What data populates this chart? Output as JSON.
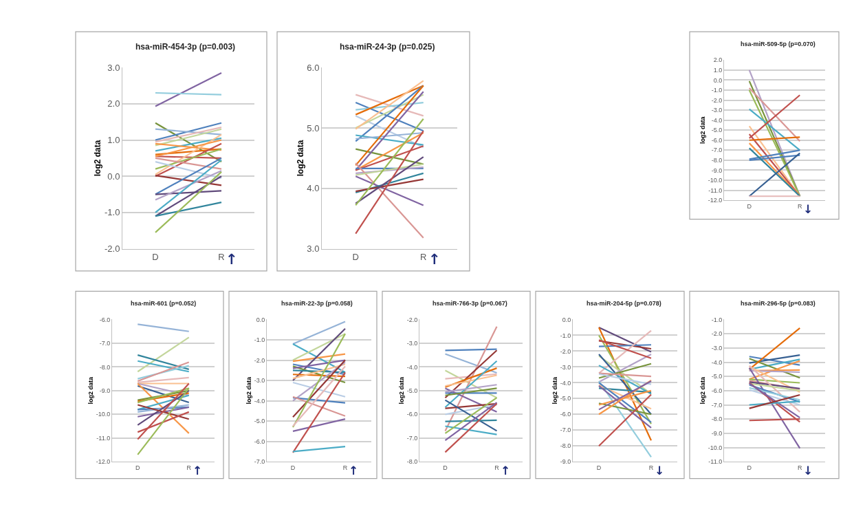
{
  "chart_data": [
    {
      "type": "line",
      "title": "hsa-miR-454-3p (p=0.003)",
      "ylabel": "log2 data",
      "categories": [
        "D",
        "R"
      ],
      "ylim": [
        -2,
        3
      ],
      "yticks": [
        {
          "value": -2,
          "label": "-2.0"
        },
        {
          "value": -1,
          "label": "-1.0"
        },
        {
          "value": 0,
          "label": "0.0"
        },
        {
          "value": 1,
          "label": "1.0"
        },
        {
          "value": 2,
          "label": "2.0"
        },
        {
          "value": 3,
          "label": "3.0"
        }
      ],
      "grid": "y",
      "marker": "none",
      "line_style": "solid",
      "annotations": [
        "↑"
      ],
      "series": [
        {
          "color": "#8064a2",
          "values": [
            1.93,
            2.85
          ]
        },
        {
          "color": "#93cddd",
          "values": [
            2.3,
            2.25
          ]
        },
        {
          "color": "#77933c",
          "values": [
            1.47,
            0.4
          ]
        },
        {
          "color": "#4f81bd",
          "values": [
            1.0,
            1.47
          ]
        },
        {
          "color": "#95b3d7",
          "values": [
            1.3,
            1.15
          ]
        },
        {
          "color": "#e6b9b8",
          "values": [
            0.95,
            1.35
          ]
        },
        {
          "color": "#c3d69b",
          "values": [
            0.85,
            1.3
          ]
        },
        {
          "color": "#4bacc6",
          "values": [
            0.7,
            1.05
          ]
        },
        {
          "color": "#f79646",
          "values": [
            0.9,
            0.72
          ]
        },
        {
          "color": "#e46c0a",
          "values": [
            0.6,
            0.75
          ]
        },
        {
          "color": "#c0504d",
          "values": [
            0.55,
            0.5
          ]
        },
        {
          "color": "#fac090",
          "values": [
            0.05,
            1.15
          ]
        },
        {
          "color": "#f79646",
          "values": [
            0.55,
            1.0
          ]
        },
        {
          "color": "#c0504d",
          "values": [
            0.0,
            0.9
          ]
        },
        {
          "color": "#9bbb59",
          "values": [
            0.2,
            0.75
          ]
        },
        {
          "color": "#d99694",
          "values": [
            0.5,
            0.2
          ]
        },
        {
          "color": "#b9cde5",
          "values": [
            0.4,
            -0.05
          ]
        },
        {
          "color": "#953735",
          "values": [
            0.02,
            -0.25
          ]
        },
        {
          "color": "#4f81bd",
          "values": [
            -0.5,
            0.5
          ]
        },
        {
          "color": "#604a7b",
          "values": [
            -0.5,
            -0.4
          ]
        },
        {
          "color": "#b3a2c7",
          "values": [
            -0.65,
            0.15
          ]
        },
        {
          "color": "#4bacc6",
          "values": [
            -1.0,
            0.45
          ]
        },
        {
          "color": "#604a7b",
          "values": [
            -1.1,
            0.0
          ]
        },
        {
          "color": "#31859c",
          "values": [
            -1.1,
            -0.72
          ]
        },
        {
          "color": "#9bbb59",
          "values": [
            -1.55,
            0.12
          ]
        }
      ]
    },
    {
      "type": "line",
      "title": "hsa-miR-24-3p (p=0.025)",
      "ylabel": "log2 data",
      "categories": [
        "D",
        "R"
      ],
      "ylim": [
        3,
        6
      ],
      "yticks": [
        {
          "value": 3,
          "label": "3.0"
        },
        {
          "value": 4,
          "label": "4.0"
        },
        {
          "value": 5,
          "label": "5.0"
        },
        {
          "value": 6,
          "label": "6.0"
        }
      ],
      "grid": "y",
      "marker": "none",
      "line_style": "solid",
      "annotations": [
        "↑"
      ],
      "series": [
        {
          "color": "#e6b9b8",
          "values": [
            5.55,
            5.2
          ]
        },
        {
          "color": "#4f81bd",
          "values": [
            5.42,
            4.95
          ]
        },
        {
          "color": "#93cddd",
          "values": [
            5.3,
            5.42
          ]
        },
        {
          "color": "#e46c0a",
          "values": [
            5.22,
            5.7
          ]
        },
        {
          "color": "#b9cde5",
          "values": [
            5.2,
            4.68
          ]
        },
        {
          "color": "#c3d69b",
          "values": [
            5.0,
            5.55
          ]
        },
        {
          "color": "#fac090",
          "values": [
            4.98,
            5.78
          ]
        },
        {
          "color": "#4f81bd",
          "values": [
            4.78,
            5.7
          ]
        },
        {
          "color": "#4bacc6",
          "values": [
            4.88,
            4.72
          ]
        },
        {
          "color": "#95b3d7",
          "values": [
            4.82,
            4.92
          ]
        },
        {
          "color": "#77933c",
          "values": [
            4.65,
            4.4
          ]
        },
        {
          "color": "#f79646",
          "values": [
            4.3,
            4.92
          ]
        },
        {
          "color": "#e46c0a",
          "values": [
            4.38,
            5.7
          ]
        },
        {
          "color": "#8064a2",
          "values": [
            4.3,
            5.6
          ]
        },
        {
          "color": "#c0504d",
          "values": [
            4.3,
            4.7
          ]
        },
        {
          "color": "#4f81bd",
          "values": [
            4.33,
            4.33
          ]
        },
        {
          "color": "#b3a2c7",
          "values": [
            4.25,
            4.35
          ]
        },
        {
          "color": "#d99694",
          "values": [
            4.42,
            3.18
          ]
        },
        {
          "color": "#c3d69b",
          "values": [
            4.22,
            4.4
          ]
        },
        {
          "color": "#8064a2",
          "values": [
            4.2,
            3.72
          ]
        },
        {
          "color": "#31859c",
          "values": [
            3.93,
            4.25
          ]
        },
        {
          "color": "#953735",
          "values": [
            3.95,
            4.15
          ]
        },
        {
          "color": "#604a7b",
          "values": [
            3.75,
            4.52
          ]
        },
        {
          "color": "#9bbb59",
          "values": [
            3.72,
            5.15
          ]
        },
        {
          "color": "#c0504d",
          "values": [
            3.25,
            4.95
          ]
        }
      ]
    },
    {
      "type": "line",
      "title": "hsa-miR-509-5p (p=0.070)",
      "ylabel": "log2 data",
      "categories": [
        "D",
        "R"
      ],
      "ylim": [
        -12,
        2
      ],
      "yticks": [
        {
          "value": -12,
          "label": "-12.0"
        },
        {
          "value": -11,
          "label": "-11.0"
        },
        {
          "value": -10,
          "label": "-10.0"
        },
        {
          "value": -9,
          "label": "-9.0"
        },
        {
          "value": -8,
          "label": "-8.0"
        },
        {
          "value": -7,
          "label": "-7.0"
        },
        {
          "value": -6,
          "label": "-6.0"
        },
        {
          "value": -5,
          "label": "-5.0"
        },
        {
          "value": -4,
          "label": "-4.0"
        },
        {
          "value": -3,
          "label": "-3.0"
        },
        {
          "value": -2,
          "label": "-2.0"
        },
        {
          "value": -1,
          "label": "-1.0"
        },
        {
          "value": 0,
          "label": "0.0"
        },
        {
          "value": 1,
          "label": "1.0"
        },
        {
          "value": 2,
          "label": "2.0"
        }
      ],
      "grid": "y",
      "marker": "none",
      "line_style": "solid",
      "annotations": [
        "↓"
      ],
      "series": [
        {
          "color": "#b3a2c7",
          "values": [
            1.0,
            -11.6
          ]
        },
        {
          "color": "#77933c",
          "values": [
            -0.1,
            -11.6
          ]
        },
        {
          "color": "#9bbb59",
          "values": [
            -1.0,
            -11.6
          ]
        },
        {
          "color": "#d99694",
          "values": [
            -0.8,
            -6.1
          ]
        },
        {
          "color": "#4bacc6",
          "values": [
            -2.9,
            -7.0
          ]
        },
        {
          "color": "#fac090",
          "values": [
            -4.6,
            -11.6
          ]
        },
        {
          "color": "#c0504d",
          "values": [
            -5.4,
            -11.6
          ]
        },
        {
          "color": "#c0504d",
          "values": [
            -5.8,
            -1.5
          ]
        },
        {
          "color": "#e46c0a",
          "values": [
            -6.0,
            -5.7
          ]
        },
        {
          "color": "#f79646",
          "values": [
            -6.3,
            -11.6
          ]
        },
        {
          "color": "#4f81bd",
          "values": [
            -7.9,
            -7.0
          ]
        },
        {
          "color": "#4f81bd",
          "values": [
            -8.0,
            -7.5
          ]
        },
        {
          "color": "#31859c",
          "values": [
            -6.8,
            -11.6
          ]
        },
        {
          "color": "#376092",
          "values": [
            -11.6,
            -7.3
          ]
        },
        {
          "color": "#e6b9b8",
          "values": [
            -11.6,
            -11.6
          ]
        }
      ]
    },
    {
      "type": "line",
      "title": "hsa-miR-601 (p=0.052)",
      "ylabel": "log2 data",
      "categories": [
        "D",
        "R"
      ],
      "ylim": [
        -12,
        -6
      ],
      "yticks": [
        {
          "value": -12,
          "label": "-12.0"
        },
        {
          "value": -11,
          "label": "-11.0"
        },
        {
          "value": -10,
          "label": "-10.0"
        },
        {
          "value": -9,
          "label": "-9.0"
        },
        {
          "value": -8,
          "label": "-8.0"
        },
        {
          "value": -7,
          "label": "-7.0"
        },
        {
          "value": -6,
          "label": "-6.0"
        }
      ],
      "grid": "y",
      "marker": "none",
      "line_style": "solid",
      "annotations": [
        "↑"
      ],
      "series": [
        {
          "color": "#95b3d7",
          "values": [
            -6.2,
            -6.5
          ]
        },
        {
          "color": "#c3d69b",
          "values": [
            -8.2,
            -6.75
          ]
        },
        {
          "color": "#31859c",
          "values": [
            -7.5,
            -8.1
          ]
        },
        {
          "color": "#4bacc6",
          "values": [
            -7.75,
            -8.2
          ]
        },
        {
          "color": "#93cddd",
          "values": [
            -8.5,
            -7.95
          ]
        },
        {
          "color": "#d99694",
          "values": [
            -8.6,
            -7.8
          ]
        },
        {
          "color": "#e6b9b8",
          "values": [
            -8.65,
            -8.45
          ]
        },
        {
          "color": "#fac090",
          "values": [
            -8.7,
            -8.7
          ]
        },
        {
          "color": "#b3a2c7",
          "values": [
            -8.7,
            -9.2
          ]
        },
        {
          "color": "#376092",
          "values": [
            -8.8,
            -9.5
          ]
        },
        {
          "color": "#f79646",
          "values": [
            -8.7,
            -10.8
          ]
        },
        {
          "color": "#77933c",
          "values": [
            -9.4,
            -9.0
          ]
        },
        {
          "color": "#e46c0a",
          "values": [
            -9.45,
            -9.1
          ]
        },
        {
          "color": "#9bbb59",
          "values": [
            -9.5,
            -8.9
          ]
        },
        {
          "color": "#4bacc6",
          "values": [
            -9.8,
            -9.2
          ]
        },
        {
          "color": "#4f81bd",
          "values": [
            -9.8,
            -9.7
          ]
        },
        {
          "color": "#95b3d7",
          "values": [
            -9.9,
            -9.6
          ]
        },
        {
          "color": "#8064a2",
          "values": [
            -10.1,
            -9.7
          ]
        },
        {
          "color": "#604a7b",
          "values": [
            -10.45,
            -9.0
          ]
        },
        {
          "color": "#953735",
          "values": [
            -9.6,
            -10.2
          ]
        },
        {
          "color": "#c0504d",
          "values": [
            -10.75,
            -9.9
          ]
        },
        {
          "color": "#c0504d",
          "values": [
            -11.05,
            -8.7
          ]
        },
        {
          "color": "#9bbb59",
          "values": [
            -11.7,
            -8.9
          ]
        }
      ]
    },
    {
      "type": "line",
      "title": "hsa-miR-22-3p (p=0.058)",
      "ylabel": "log2 data",
      "categories": [
        "D",
        "R"
      ],
      "ylim": [
        -7,
        0
      ],
      "yticks": [
        {
          "value": -7,
          "label": "-7.0"
        },
        {
          "value": -6,
          "label": "-6.0"
        },
        {
          "value": -5,
          "label": "-5.0"
        },
        {
          "value": -4,
          "label": "-4.0"
        },
        {
          "value": -3,
          "label": "-3.0"
        },
        {
          "value": -2,
          "label": "-2.0"
        },
        {
          "value": -1,
          "label": "-1.0"
        },
        {
          "value": 0,
          "label": "0.0"
        }
      ],
      "grid": "y",
      "marker": "none",
      "line_style": "solid",
      "annotations": [
        "↑"
      ],
      "series": [
        {
          "color": "#95b3d7",
          "values": [
            -1.2,
            -0.1
          ]
        },
        {
          "color": "#4bacc6",
          "values": [
            -1.2,
            -2.6
          ]
        },
        {
          "color": "#c3d69b",
          "values": [
            -2.0,
            -0.7
          ]
        },
        {
          "color": "#f79646",
          "values": [
            -2.05,
            -1.7
          ]
        },
        {
          "color": "#4f81bd",
          "values": [
            -2.2,
            -2.7
          ]
        },
        {
          "color": "#604a7b",
          "values": [
            -3.0,
            -0.45
          ]
        },
        {
          "color": "#77933c",
          "values": [
            -2.3,
            -3.1
          ]
        },
        {
          "color": "#31859c",
          "values": [
            -2.5,
            -2.6
          ]
        },
        {
          "color": "#e46c0a",
          "values": [
            -2.7,
            -2.8
          ]
        },
        {
          "color": "#fac090",
          "values": [
            -2.9,
            -2.2
          ]
        },
        {
          "color": "#b9cde5",
          "values": [
            -3.1,
            -3.8
          ]
        },
        {
          "color": "#8064a2",
          "values": [
            -2.4,
            -2.0
          ]
        },
        {
          "color": "#b3a2c7",
          "values": [
            -4.0,
            -2.1
          ]
        },
        {
          "color": "#4f81bd",
          "values": [
            -3.85,
            -4.1
          ]
        },
        {
          "color": "#d99694",
          "values": [
            -3.8,
            -4.75
          ]
        },
        {
          "color": "#953735",
          "values": [
            -4.8,
            -2.0
          ]
        },
        {
          "color": "#9bbb59",
          "values": [
            -5.3,
            -0.7
          ]
        },
        {
          "color": "#e6b9b8",
          "values": [
            -5.25,
            -2.3
          ]
        },
        {
          "color": "#8064a2",
          "values": [
            -5.5,
            -4.9
          ]
        },
        {
          "color": "#c0504d",
          "values": [
            -6.55,
            -2.6
          ]
        },
        {
          "color": "#4bacc6",
          "values": [
            -6.5,
            -6.25
          ]
        }
      ]
    },
    {
      "type": "line",
      "title": "hsa-miR-766-3p (p=0.067)",
      "ylabel": "log2 data",
      "categories": [
        "D",
        "R"
      ],
      "ylim": [
        -8,
        -2
      ],
      "yticks": [
        {
          "value": -8,
          "label": "-8.0"
        },
        {
          "value": -7,
          "label": "-7.0"
        },
        {
          "value": -6,
          "label": "-6.0"
        },
        {
          "value": -5,
          "label": "-5.0"
        },
        {
          "value": -4,
          "label": "-4.0"
        },
        {
          "value": -3,
          "label": "-3.0"
        },
        {
          "value": -2,
          "label": "-2.0"
        }
      ],
      "grid": "y",
      "marker": "none",
      "line_style": "solid",
      "annotations": [
        "↑"
      ],
      "series": [
        {
          "color": "#4f81bd",
          "values": [
            -3.3,
            -3.25
          ]
        },
        {
          "color": "#95b3d7",
          "values": [
            -3.45,
            -4.25
          ]
        },
        {
          "color": "#c3d69b",
          "values": [
            -4.15,
            -5.3
          ]
        },
        {
          "color": "#e6b9b8",
          "values": [
            -4.5,
            -4.3
          ]
        },
        {
          "color": "#d99694",
          "values": [
            -6.7,
            -2.3
          ]
        },
        {
          "color": "#953735",
          "values": [
            -5.3,
            -3.3
          ]
        },
        {
          "color": "#e46c0a",
          "values": [
            -4.85,
            -4.05
          ]
        },
        {
          "color": "#fac090",
          "values": [
            -4.8,
            -4.35
          ]
        },
        {
          "color": "#4bacc6",
          "values": [
            -5.7,
            -3.75
          ]
        },
        {
          "color": "#4f81bd",
          "values": [
            -5.1,
            -5.1
          ]
        },
        {
          "color": "#8064a2",
          "values": [
            -4.9,
            -5.9
          ]
        },
        {
          "color": "#b3a2c7",
          "values": [
            -5.05,
            -4.75
          ]
        },
        {
          "color": "#77933c",
          "values": [
            -5.2,
            -4.9
          ]
        },
        {
          "color": "#953735",
          "values": [
            -5.75,
            -5.55
          ]
        },
        {
          "color": "#b9cde5",
          "values": [
            -6.0,
            -5.6
          ]
        },
        {
          "color": "#376092",
          "values": [
            -5.4,
            -6.7
          ]
        },
        {
          "color": "#31859c",
          "values": [
            -6.3,
            -6.25
          ]
        },
        {
          "color": "#4bacc6",
          "values": [
            -6.5,
            -6.85
          ]
        },
        {
          "color": "#9bbb59",
          "values": [
            -6.8,
            -5.3
          ]
        },
        {
          "color": "#8064a2",
          "values": [
            -7.1,
            -5.5
          ]
        },
        {
          "color": "#c0504d",
          "values": [
            -7.6,
            -5.55
          ]
        }
      ]
    },
    {
      "type": "line",
      "title": "hsa-miR-204-5p (p=0.078)",
      "ylabel": "log2 data",
      "categories": [
        "D",
        "R"
      ],
      "ylim": [
        -9,
        0
      ],
      "yticks": [
        {
          "value": -9,
          "label": "-9.0"
        },
        {
          "value": -8,
          "label": "-8.0"
        },
        {
          "value": -7,
          "label": "-7.0"
        },
        {
          "value": -6,
          "label": "-6.0"
        },
        {
          "value": -5,
          "label": "-5.0"
        },
        {
          "value": -4,
          "label": "-4.0"
        },
        {
          "value": -3,
          "label": "-3.0"
        },
        {
          "value": -2,
          "label": "-2.0"
        },
        {
          "value": -1,
          "label": "-1.0"
        },
        {
          "value": 0,
          "label": "0.0"
        }
      ],
      "grid": "y",
      "marker": "none",
      "line_style": "solid",
      "annotations": [
        "↓"
      ],
      "series": [
        {
          "color": "#604a7b",
          "values": [
            -0.5,
            -2.05
          ]
        },
        {
          "color": "#e46c0a",
          "values": [
            -0.5,
            -7.65
          ]
        },
        {
          "color": "#953735",
          "values": [
            -1.35,
            -1.85
          ]
        },
        {
          "color": "#4f81bd",
          "values": [
            -1.7,
            -1.6
          ]
        },
        {
          "color": "#9bbb59",
          "values": [
            -1.0,
            -6.6
          ]
        },
        {
          "color": "#e6b9b8",
          "values": [
            -3.4,
            -0.7
          ]
        },
        {
          "color": "#c3d69b",
          "values": [
            -2.3,
            -4.7
          ]
        },
        {
          "color": "#376092",
          "values": [
            -2.2,
            -6.0
          ]
        },
        {
          "color": "#b3a2c7",
          "values": [
            -3.95,
            -2.2
          ]
        },
        {
          "color": "#77933c",
          "values": [
            -3.7,
            -2.8
          ]
        },
        {
          "color": "#4bacc6",
          "values": [
            -2.9,
            -4.7
          ]
        },
        {
          "color": "#d99694",
          "values": [
            -3.4,
            -3.6
          ]
        },
        {
          "color": "#b9cde5",
          "values": [
            -3.45,
            -4.1
          ]
        },
        {
          "color": "#93cddd",
          "values": [
            -3.9,
            -8.7
          ]
        },
        {
          "color": "#31859c",
          "values": [
            -4.35,
            -4.6
          ]
        },
        {
          "color": "#fac090",
          "values": [
            -4.15,
            -5.65
          ]
        },
        {
          "color": "#4f81bd",
          "values": [
            -4.0,
            -6.5
          ]
        },
        {
          "color": "#8064a2",
          "values": [
            -4.2,
            -6.85
          ]
        },
        {
          "color": "#77933c",
          "values": [
            -5.3,
            -6.0
          ]
        },
        {
          "color": "#f79646",
          "values": [
            -5.4,
            -4.5
          ]
        },
        {
          "color": "#f79646",
          "values": [
            -6.0,
            -3.85
          ]
        },
        {
          "color": "#8064a2",
          "values": [
            -5.7,
            -3.9
          ]
        },
        {
          "color": "#c0504d",
          "values": [
            -8.0,
            -4.75
          ]
        },
        {
          "color": "#c0504d",
          "values": [
            -1.3,
            -2.45
          ]
        }
      ]
    },
    {
      "type": "line",
      "title": "hsa-miR-296-5p (p=0.083)",
      "ylabel": "log2 data",
      "categories": [
        "D",
        "R"
      ],
      "ylim": [
        -11,
        -1
      ],
      "yticks": [
        {
          "value": -11,
          "label": "-11.0"
        },
        {
          "value": -10,
          "label": "-10.0"
        },
        {
          "value": -9,
          "label": "-9.0"
        },
        {
          "value": -8,
          "label": "-8.0"
        },
        {
          "value": -7,
          "label": "-7.0"
        },
        {
          "value": -6,
          "label": "-6.0"
        },
        {
          "value": -5,
          "label": "-5.0"
        },
        {
          "value": -4,
          "label": "-4.0"
        },
        {
          "value": -3,
          "label": "-3.0"
        },
        {
          "value": -2,
          "label": "-2.0"
        },
        {
          "value": -1,
          "label": "-1.0"
        }
      ],
      "grid": "y",
      "marker": "none",
      "line_style": "solid",
      "annotations": [
        "↓"
      ],
      "series": [
        {
          "color": "#4f81bd",
          "values": [
            -3.6,
            -4.2
          ]
        },
        {
          "color": "#376092",
          "values": [
            -4.05,
            -3.5
          ]
        },
        {
          "color": "#4bacc6",
          "values": [
            -4.5,
            -3.8
          ]
        },
        {
          "color": "#77933c",
          "values": [
            -3.75,
            -5.1
          ]
        },
        {
          "color": "#e46c0a",
          "values": [
            -4.5,
            -1.6
          ]
        },
        {
          "color": "#f79646",
          "values": [
            -5.2,
            -3.9
          ]
        },
        {
          "color": "#f79646",
          "values": [
            -4.6,
            -4.55
          ]
        },
        {
          "color": "#b3a2c7",
          "values": [
            -4.6,
            -4.7
          ]
        },
        {
          "color": "#9bbb59",
          "values": [
            -5.2,
            -5.45
          ]
        },
        {
          "color": "#fac090",
          "values": [
            -4.3,
            -6.1
          ]
        },
        {
          "color": "#d99694",
          "values": [
            -5.3,
            -5.9
          ]
        },
        {
          "color": "#8064a2",
          "values": [
            -4.4,
            -10.05
          ]
        },
        {
          "color": "#604a7b",
          "values": [
            -5.4,
            -5.85
          ]
        },
        {
          "color": "#e6b9b8",
          "values": [
            -4.25,
            -7.5
          ]
        },
        {
          "color": "#c3d69b",
          "values": [
            -5.5,
            -6.0
          ]
        },
        {
          "color": "#4f81bd",
          "values": [
            -5.6,
            -6.8
          ]
        },
        {
          "color": "#93cddd",
          "values": [
            -5.8,
            -6.65
          ]
        },
        {
          "color": "#b9cde5",
          "values": [
            -5.95,
            -7.0
          ]
        },
        {
          "color": "#c0504d",
          "values": [
            -5.45,
            -8.2
          ]
        },
        {
          "color": "#8064a2",
          "values": [
            -5.5,
            -7.9
          ]
        },
        {
          "color": "#4bacc6",
          "values": [
            -7.0,
            -6.75
          ]
        },
        {
          "color": "#953735",
          "values": [
            -7.25,
            -6.3
          ]
        },
        {
          "color": "#c0504d",
          "values": [
            -8.1,
            -8.0
          ]
        }
      ]
    }
  ]
}
